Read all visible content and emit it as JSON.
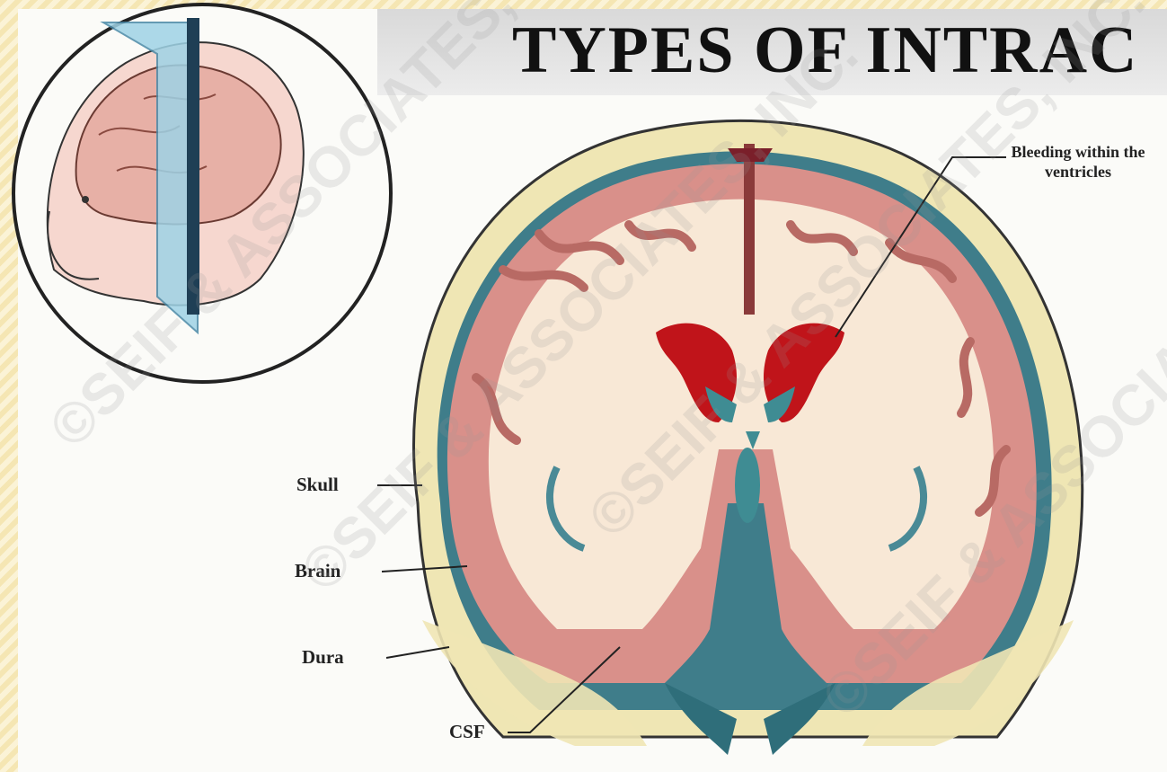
{
  "title": "TYPES OF INTRAC",
  "labels": {
    "ventricles": "Bleeding within the ventricles",
    "skull": "Skull",
    "brain": "Brain",
    "dura": "Dura",
    "csf": "CSF"
  },
  "watermark": "©SEIF & ASSOCIATES, INC.",
  "colors": {
    "skull": "#efe6b4",
    "cortex": "#d9908a",
    "white_matter": "#f8e8d6",
    "dura": "#4a8a96",
    "bleed": "#c0141a",
    "ventricle": "#3f8c93",
    "title_bar": "#dcdcdc",
    "frame": "#f5e6b3"
  }
}
